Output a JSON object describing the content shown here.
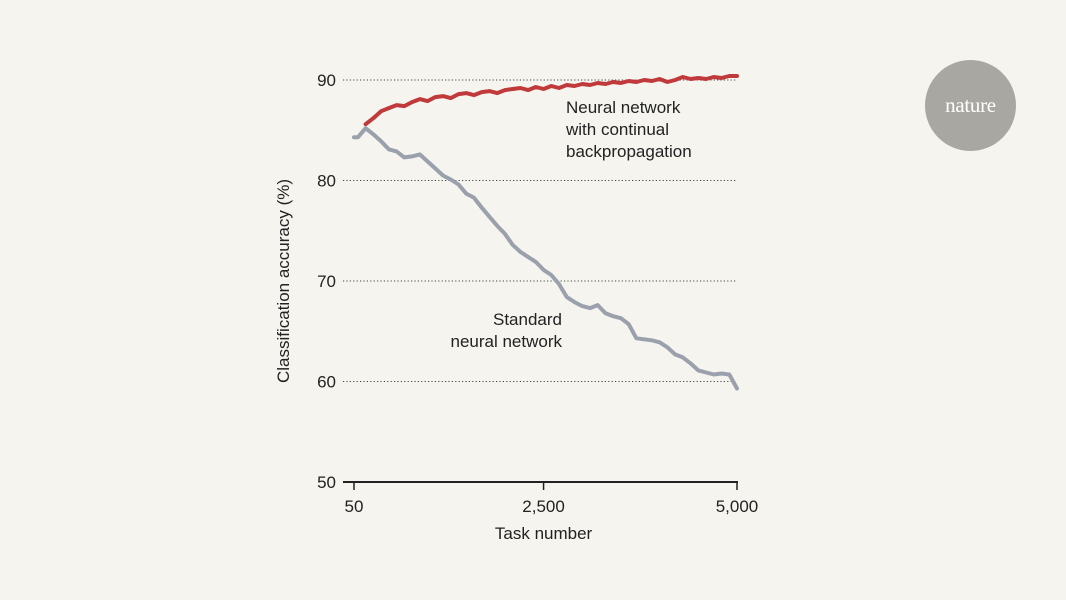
{
  "chart_data": {
    "type": "line",
    "xlabel": "Task number",
    "ylabel": "Classification accuracy (%)",
    "xlim": [
      50,
      5000
    ],
    "ylim": [
      50,
      95
    ],
    "x_ticks": [
      50,
      2500,
      5000
    ],
    "x_tick_labels": [
      "50",
      "2,500",
      "5,000"
    ],
    "y_ticks": [
      50,
      60,
      70,
      80,
      90
    ],
    "y_tick_labels": [
      "50",
      "60",
      "70",
      "80",
      "90"
    ],
    "grid": "dotted horizontal",
    "series": [
      {
        "name": "Neural network with continual backpropagation",
        "label_lines": [
          "Neural network",
          "with continual",
          "backpropagation"
        ],
        "color": "#c0393b",
        "x": [
          200,
          300,
          400,
          500,
          600,
          700,
          800,
          900,
          1000,
          1100,
          1200,
          1300,
          1400,
          1500,
          1600,
          1700,
          1800,
          1900,
          2000,
          2100,
          2200,
          2300,
          2400,
          2500,
          2600,
          2700,
          2800,
          2900,
          3000,
          3100,
          3200,
          3300,
          3400,
          3500,
          3600,
          3700,
          3800,
          3900,
          4000,
          4100,
          4200,
          4300,
          4400,
          4500,
          4600,
          4700,
          4800,
          4900,
          5000
        ],
        "values": [
          85.6,
          86.2,
          86.9,
          87.2,
          87.5,
          87.4,
          87.8,
          88.1,
          87.9,
          88.3,
          88.4,
          88.2,
          88.6,
          88.7,
          88.5,
          88.8,
          88.9,
          88.7,
          89.0,
          89.1,
          89.2,
          89.0,
          89.3,
          89.1,
          89.4,
          89.2,
          89.5,
          89.4,
          89.6,
          89.5,
          89.7,
          89.6,
          89.8,
          89.7,
          89.9,
          89.8,
          90.0,
          89.9,
          90.1,
          89.8,
          90.0,
          90.3,
          90.1,
          90.2,
          90.1,
          90.3,
          90.2,
          90.4,
          90.4
        ]
      },
      {
        "name": "Standard neural network",
        "label_lines": [
          "Standard",
          "neural network"
        ],
        "color": "#9aa1ad",
        "x": [
          50,
          100,
          200,
          300,
          400,
          500,
          600,
          700,
          800,
          900,
          1000,
          1100,
          1200,
          1300,
          1400,
          1500,
          1600,
          1700,
          1800,
          1900,
          2000,
          2100,
          2200,
          2300,
          2400,
          2500,
          2600,
          2700,
          2800,
          2900,
          3000,
          3100,
          3200,
          3300,
          3400,
          3500,
          3600,
          3700,
          3800,
          3900,
          4000,
          4100,
          4200,
          4300,
          4400,
          4500,
          4600,
          4700,
          4800,
          4900,
          5000
        ],
        "values": [
          84.3,
          84.3,
          85.2,
          84.6,
          83.9,
          83.1,
          82.9,
          82.3,
          82.4,
          82.6,
          81.9,
          81.2,
          80.5,
          80.1,
          79.6,
          78.7,
          78.3,
          77.3,
          76.4,
          75.5,
          74.7,
          73.6,
          72.9,
          72.4,
          71.9,
          71.1,
          70.6,
          69.7,
          68.4,
          67.9,
          67.5,
          67.3,
          67.6,
          66.8,
          66.5,
          66.3,
          65.7,
          64.3,
          64.2,
          64.1,
          63.9,
          63.4,
          62.7,
          62.4,
          61.8,
          61.1,
          60.9,
          60.7,
          60.8,
          60.7,
          59.3
        ]
      }
    ]
  },
  "logo": {
    "text": "nature"
  }
}
